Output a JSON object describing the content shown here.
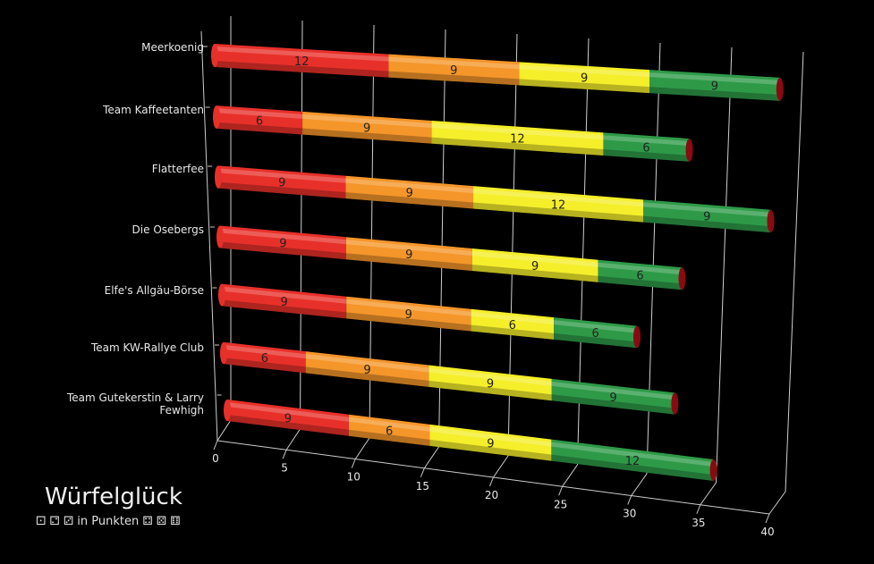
{
  "chart_data": {
    "type": "bar",
    "orientation": "horizontal",
    "stacked": true,
    "three_d": true,
    "title": "Würfelglück",
    "subtitle": "⚀ ⚁ ⚂ in Punkten ⚃ ⚄ ⚅",
    "categories": [
      "Meerkoenig",
      "Team Kaffeetanten",
      "Flatterfee",
      "Die Osebergs",
      "Elfe's Allgäu-Börse",
      "Team KW-Rallye Club",
      "Team Gutekerstin & Larry Fewhigh"
    ],
    "series": [
      {
        "name": "red",
        "color": "#e8302a",
        "values": [
          12,
          6,
          9,
          9,
          9,
          6,
          9
        ]
      },
      {
        "name": "orange",
        "color": "#f5962a",
        "values": [
          9,
          9,
          9,
          9,
          9,
          9,
          6
        ]
      },
      {
        "name": "yellow",
        "color": "#f5ee2a",
        "values": [
          9,
          12,
          12,
          9,
          6,
          9,
          9
        ]
      },
      {
        "name": "green",
        "color": "#2e9a48",
        "values": [
          9,
          6,
          9,
          6,
          6,
          9,
          12
        ]
      }
    ],
    "xlim": [
      0,
      40
    ],
    "xticks": [
      "0",
      "5",
      "10",
      "15",
      "20",
      "25",
      "30",
      "35",
      "40"
    ],
    "grid": true,
    "legend": "none"
  }
}
